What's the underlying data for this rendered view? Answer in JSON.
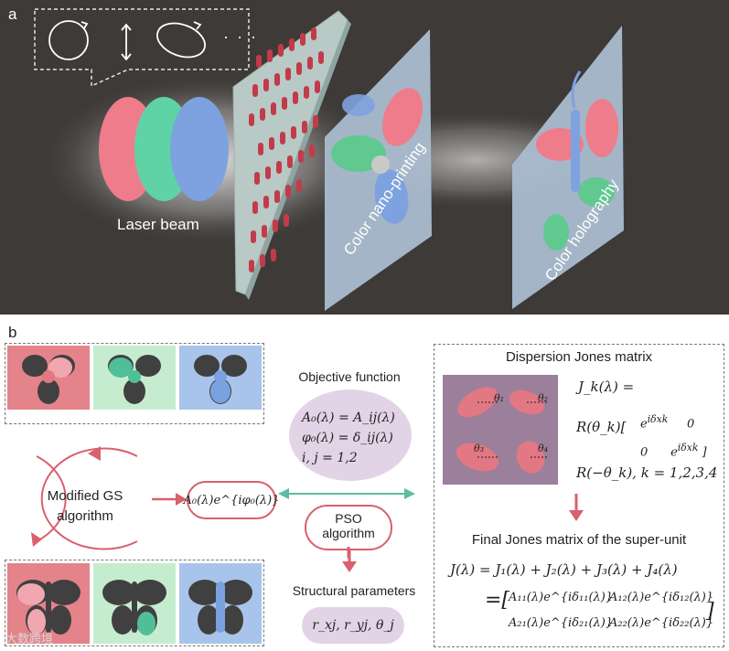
{
  "panel_a": {
    "label": "a",
    "laser_beam": "Laser beam",
    "nano_printing": "Color nano-printing",
    "holography": "Color holography",
    "ellipsis": "· · ·"
  },
  "panel_b": {
    "label": "b",
    "gs_algorithm_line1": "Modified GS",
    "gs_algorithm_line2": "algorithm",
    "objective_title": "Objective function",
    "objective_eq1": "A₀(λ) = A_ij(λ)",
    "objective_eq2": "φ₀(λ) = δ_ij(λ)",
    "objective_eq3": "i, j = 1,2",
    "amp_phase": "A₀(λ)e^{iφ₀(λ)}",
    "pso_line1": "PSO",
    "pso_line2": "algorithm",
    "structural_title": "Structural parameters",
    "structural_eq": "r_xj, r_yj, θ_j",
    "dispersion_title": "Dispersion Jones matrix",
    "jk_line1": "J_k(λ) =",
    "jk_line2": "R(θ_k)[",
    "jk_line3": "R(−θ_k), k = 1,2,3,4",
    "final_title": "Final Jones matrix of the super-unit",
    "final_eq1": "J(λ) = J₁(λ) + J₂(λ) + J₃(λ) + J₄(λ)",
    "final_eq2": "A₁₁(λ)e^{iδ₁₁(λ)}",
    "final_eq3": "A₁₂(λ)e^{iδ₁₂(λ)}",
    "final_eq4": "A₂₁(λ)e^{iδ₂₁(λ)}",
    "final_eq5": "A₂₂(λ)e^{iδ₂₂(λ)}",
    "watermark": "大数跨境",
    "theta_labels": [
      "θ₁",
      "θ₂",
      "θ₃",
      "θ₄"
    ]
  },
  "colors": {
    "red": "#e5767f",
    "green": "#6fd3a4",
    "blue": "#7c9fd8",
    "arrow_red": "#d9606d",
    "arrow_teal": "#5bbd9f"
  }
}
